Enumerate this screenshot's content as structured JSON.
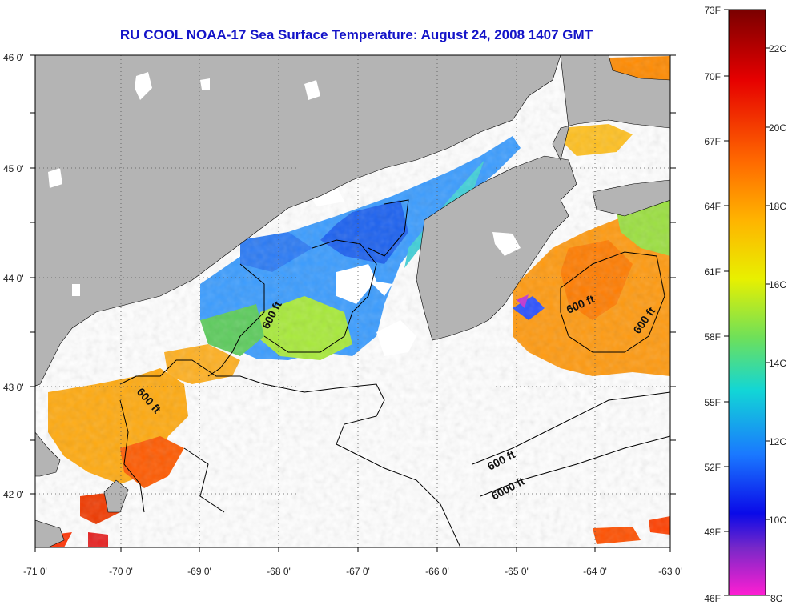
{
  "title": "RU COOL  NOAA-17  Sea Surface Temperature:  August 24, 2008 1407 GMT",
  "map": {
    "lon_range": [
      -71,
      -63
    ],
    "lat_range": [
      41.5,
      46
    ],
    "x_ticks": [
      "-71 0'",
      "-70 0'",
      "-69 0'",
      "-68 0'",
      "-67 0'",
      "-66 0'",
      "-65 0'",
      "-64 0'",
      "-63 0'"
    ],
    "y_ticks": [
      "46 0'",
      "45 0'",
      "44 0'",
      "43 0'",
      "42 0'"
    ],
    "contour_labels": [
      {
        "id": "c1",
        "text": "600 ft"
      },
      {
        "id": "c2",
        "text": "600 ft"
      },
      {
        "id": "c3",
        "text": "600 ft"
      },
      {
        "id": "c4",
        "text": "600 ft"
      },
      {
        "id": "c5",
        "text": "600 ft"
      },
      {
        "id": "c6",
        "text": "6000 ft"
      }
    ],
    "land_color": "#b4b4b4",
    "gridlines": "dotted"
  },
  "colorbar": {
    "fahrenheit": [
      "73F",
      "70F",
      "67F",
      "64F",
      "61F",
      "58F",
      "55F",
      "52F",
      "49F",
      "46F"
    ],
    "celsius": [
      "22C",
      "20C",
      "18C",
      "16C",
      "14C",
      "12C",
      "10C",
      "8C"
    ],
    "colors": [
      "#7a0000",
      "#e60000",
      "#ff6a00",
      "#ffb400",
      "#e8f000",
      "#6ee05a",
      "#12d6d6",
      "#1a78ff",
      "#0a0ae8",
      "#7a28c8",
      "#ff1ed2"
    ]
  }
}
